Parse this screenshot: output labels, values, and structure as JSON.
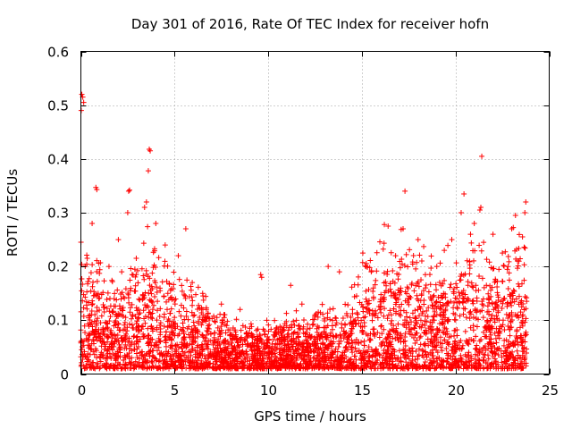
{
  "chart_data": {
    "type": "scatter",
    "title": "Day 301 of 2016, Rate Of TEC Index for receiver hofn",
    "xlabel": "GPS time / hours",
    "ylabel": "ROTI / TECUs",
    "xlim": [
      0,
      25
    ],
    "ylim": [
      0,
      0.6
    ],
    "xticks": [
      0,
      5,
      10,
      15,
      20,
      25
    ],
    "yticks": [
      0,
      0.1,
      0.2,
      0.3,
      0.4,
      0.5,
      0.6
    ],
    "xtick_labels": [
      "0",
      "5",
      "10",
      "15",
      "20",
      "25"
    ],
    "ytick_labels": [
      "0",
      "0.1",
      "0.2",
      "0.3",
      "0.4",
      "0.5",
      "0.6"
    ],
    "grid": true,
    "marker": "+",
    "color": "#ff0000",
    "series": [
      {
        "name": "ROTI",
        "points": [
          [
            0.05,
            0.52
          ],
          [
            0.1,
            0.515
          ],
          [
            0.15,
            0.505
          ],
          [
            0.02,
            0.49
          ],
          [
            3.65,
            0.418
          ],
          [
            3.7,
            0.415
          ],
          [
            3.6,
            0.378
          ],
          [
            21.4,
            0.405
          ],
          [
            0.8,
            0.347
          ],
          [
            0.85,
            0.343
          ],
          [
            2.6,
            0.342
          ],
          [
            2.55,
            0.34
          ],
          [
            17.3,
            0.34
          ],
          [
            20.45,
            0.335
          ],
          [
            3.5,
            0.32
          ],
          [
            23.75,
            0.32
          ],
          [
            21.35,
            0.31
          ],
          [
            21.3,
            0.305
          ],
          [
            3.4,
            0.31
          ],
          [
            23.2,
            0.295
          ],
          [
            23.7,
            0.3
          ],
          [
            2.5,
            0.3
          ],
          [
            0.6,
            0.28
          ],
          [
            5.6,
            0.27
          ],
          [
            9.6,
            0.185
          ],
          [
            9.65,
            0.18
          ],
          [
            11.2,
            0.165
          ],
          [
            13.2,
            0.2
          ],
          [
            13.8,
            0.19
          ],
          [
            15.05,
            0.225
          ],
          [
            16.2,
            0.278
          ],
          [
            16.4,
            0.275
          ],
          [
            17.2,
            0.27
          ],
          [
            18.3,
            0.237
          ],
          [
            19.0,
            0.2
          ],
          [
            19.4,
            0.23
          ],
          [
            19.8,
            0.25
          ],
          [
            20.3,
            0.3
          ],
          [
            21.0,
            0.28
          ],
          [
            22.0,
            0.26
          ],
          [
            22.5,
            0.225
          ],
          [
            23.0,
            0.27
          ],
          [
            1.5,
            0.2
          ],
          [
            2.0,
            0.25
          ],
          [
            4.0,
            0.28
          ],
          [
            4.5,
            0.24
          ],
          [
            5.2,
            0.22
          ],
          [
            6.5,
            0.15
          ],
          [
            7.5,
            0.13
          ],
          [
            8.5,
            0.12
          ],
          [
            11.8,
            0.13
          ],
          [
            12.5,
            0.11
          ],
          [
            14.5,
            0.12
          ],
          [
            15.5,
            0.19
          ],
          [
            16.8,
            0.22
          ],
          [
            18.0,
            0.25
          ],
          [
            20.8,
            0.26
          ],
          [
            22.8,
            0.2
          ]
        ]
      }
    ]
  }
}
